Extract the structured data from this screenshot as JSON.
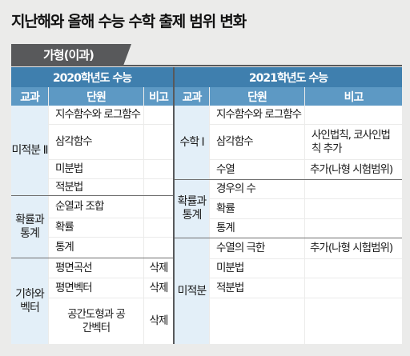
{
  "title": "지난해와 올해 수능 수학 출제 범위 변화",
  "tab": "가형(이과)",
  "years": {
    "y2020": "2020학년도 수능",
    "y2021": "2021학년도 수능"
  },
  "headers": {
    "subject": "교과",
    "unit": "단원",
    "note": "비고"
  },
  "left": {
    "subjects": [
      "미적분 Ⅱ",
      "확률과 통계",
      "기하와 벡터"
    ],
    "rows": [
      {
        "unit": "지수함수와 로그함수",
        "note": ""
      },
      {
        "unit": "삼각함수",
        "note": ""
      },
      {
        "unit": "미분법",
        "note": ""
      },
      {
        "unit": "적분법",
        "note": ""
      },
      {
        "unit": "순열과 조합",
        "note": ""
      },
      {
        "unit": "확률",
        "note": ""
      },
      {
        "unit": "통계",
        "note": ""
      },
      {
        "unit": "평면곡선",
        "note": "삭제"
      },
      {
        "unit": "평면벡터",
        "note": "삭제"
      },
      {
        "unit": "공간도형과 공간벡터",
        "note": "삭제"
      }
    ]
  },
  "right": {
    "subjects": [
      "수학 Ⅰ",
      "확률과 통계",
      "미적분"
    ],
    "rows": [
      {
        "unit": "지수함수와 로그함수",
        "note": ""
      },
      {
        "unit": "삼각함수",
        "note": "사인법칙, 코사인법칙 추가"
      },
      {
        "unit": "수열",
        "note": "추가(나형 시험범위)"
      },
      {
        "unit": "경우의 수",
        "note": ""
      },
      {
        "unit": "확률",
        "note": ""
      },
      {
        "unit": "통계",
        "note": ""
      },
      {
        "unit": "수열의 극한",
        "note": "추가(나형 시험범위)"
      },
      {
        "unit": "미분법",
        "note": ""
      },
      {
        "unit": "적분법",
        "note": ""
      }
    ]
  }
}
